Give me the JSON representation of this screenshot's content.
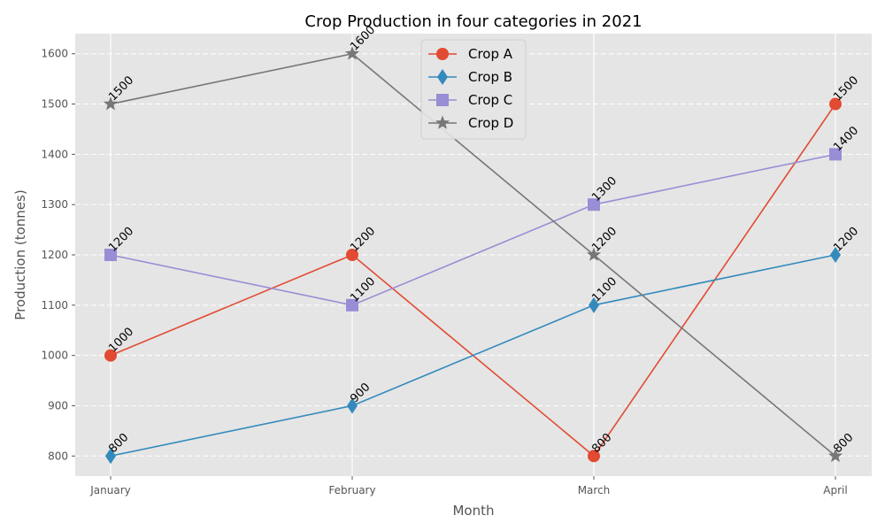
{
  "chart_data": {
    "type": "line",
    "title": "Crop Production in four categories in 2021",
    "xlabel": "Month",
    "ylabel": "Production (tonnes)",
    "categories": [
      "January",
      "February",
      "March",
      "April"
    ],
    "ylim": [
      760,
      1640
    ],
    "yticks": [
      800,
      900,
      1000,
      1100,
      1200,
      1300,
      1400,
      1500,
      1600
    ],
    "grid": true,
    "legend_position": "top-center",
    "series": [
      {
        "name": "Crop A",
        "values": [
          1000,
          1200,
          800,
          1500
        ],
        "color": "#E24A33",
        "marker": "circle"
      },
      {
        "name": "Crop B",
        "values": [
          800,
          900,
          1100,
          1200
        ],
        "color": "#348ABD",
        "marker": "diamond"
      },
      {
        "name": "Crop C",
        "values": [
          1200,
          1100,
          1300,
          1400
        ],
        "color": "#988ED5",
        "marker": "square"
      },
      {
        "name": "Crop D",
        "values": [
          1500,
          1600,
          1200,
          800
        ],
        "color": "#777777",
        "marker": "star"
      }
    ]
  }
}
